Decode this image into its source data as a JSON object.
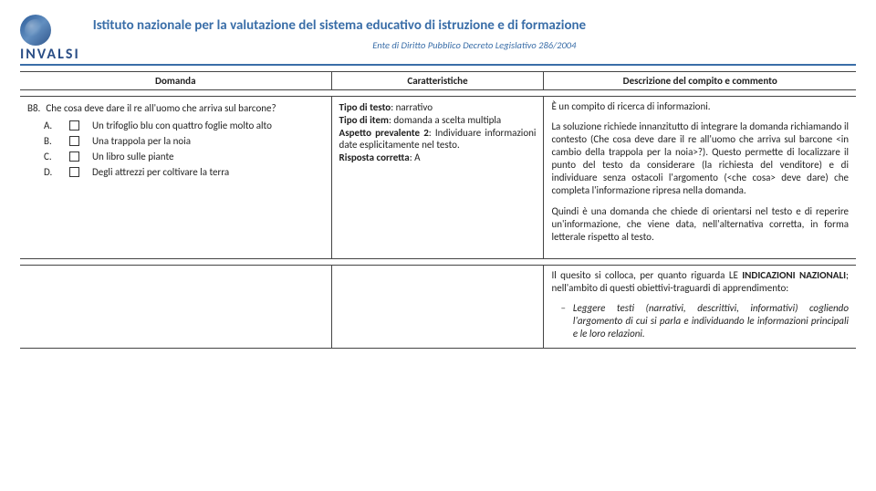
{
  "header": {
    "logo_text": "INVALSI",
    "institute_title": "Istituto nazionale per la valutazione del sistema educativo di istruzione e di formazione",
    "institute_sub": "Ente di Diritto Pubblico Decreto Legislativo 286/2004"
  },
  "columns": {
    "col1": "Domanda",
    "col2": "Caratteristiche",
    "col3": "Descrizione del compito e commento"
  },
  "domanda": {
    "num": "B8.",
    "text": "Che cosa deve dare il re all'uomo che arriva sul barcone?",
    "options": [
      {
        "letter": "A.",
        "label": "Un trifoglio blu con quattro foglie molto alto"
      },
      {
        "letter": "B.",
        "label": "Una trappola per la noia"
      },
      {
        "letter": "C.",
        "label": "Un libro sulle piante"
      },
      {
        "letter": "D.",
        "label": "Degli attrezzi per coltivare la terra"
      }
    ]
  },
  "caratteristiche": {
    "l1a": "Tipo di testo",
    "l1b": ": narrativo",
    "l2a": "Tipo di item",
    "l2b": ": domanda a scelta multipla",
    "l3a": "Aspetto prevalente 2",
    "l3b": ": Individuare informazioni date esplicitamente nel testo.",
    "l4a": "Risposta corretta",
    "l4b": ": A"
  },
  "descrizione": {
    "p1": "È un compito di ricerca di informazioni.",
    "p2": "La soluzione richiede innanzitutto di integrare la domanda richiamando il contesto (Che cosa deve dare il re all'uomo che arriva sul barcone <in cambio della trappola per la noia>?). Questo permette di localizzare il punto del testo da considerare (la richiesta del venditore) e di individuare senza ostacoli l'argomento (<che cosa> deve dare) che completa l'informazione ripresa nella domanda.",
    "p3": "Quindi è una domanda che chiede di orientarsi nel testo e di reperire un'informazione, che viene data, nell'alternativa corretta, in forma letterale rispetto al testo.",
    "p4a": "Il quesito si colloca, per quanto riguarda LE ",
    "p4b": "INDICAZIONI NAZIONALI",
    "p4c": "; nell'ambito di questi obiettivi-traguardi di apprendimento:",
    "bullet": "Leggere testi (narrativi, descrittivi, informativi) cogliendo l'argomento di cui si parla e individuando le informazioni principali e le loro relazioni."
  },
  "colors": {
    "brand": "#3a6ea8",
    "text": "#222222",
    "border": "#444444"
  }
}
